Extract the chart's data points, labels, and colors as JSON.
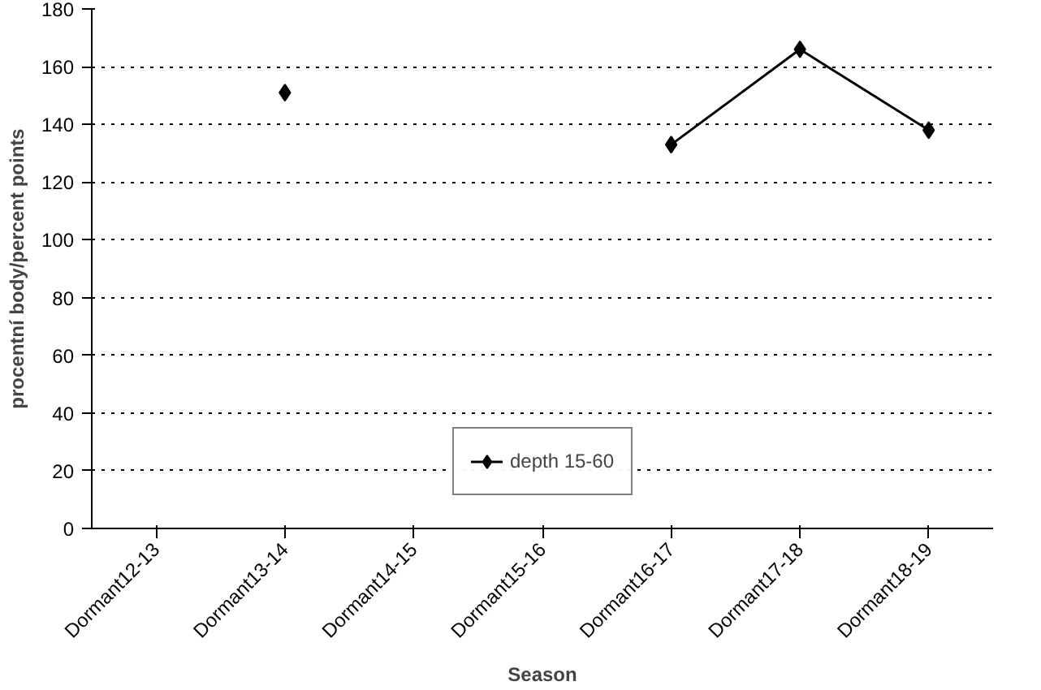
{
  "chart_data": {
    "type": "line",
    "xlabel": "Season",
    "ylabel": "procentní body/percent points",
    "categories": [
      "Dormant12-13",
      "Dormant13-14",
      "Dormant14-15",
      "Dormant15-16",
      "Dormant16-17",
      "Dormant17-18",
      "Dormant18-19"
    ],
    "series": [
      {
        "name": "depth 15-60",
        "color": "#000000",
        "values": [
          null,
          151,
          null,
          null,
          133,
          166,
          138
        ]
      }
    ],
    "ylim": [
      0,
      180
    ],
    "yticks": [
      0,
      20,
      40,
      60,
      80,
      100,
      120,
      140,
      160,
      180
    ],
    "grid": "y",
    "legend": "bottom",
    "marker": "diamond",
    "line_style": "solid"
  }
}
